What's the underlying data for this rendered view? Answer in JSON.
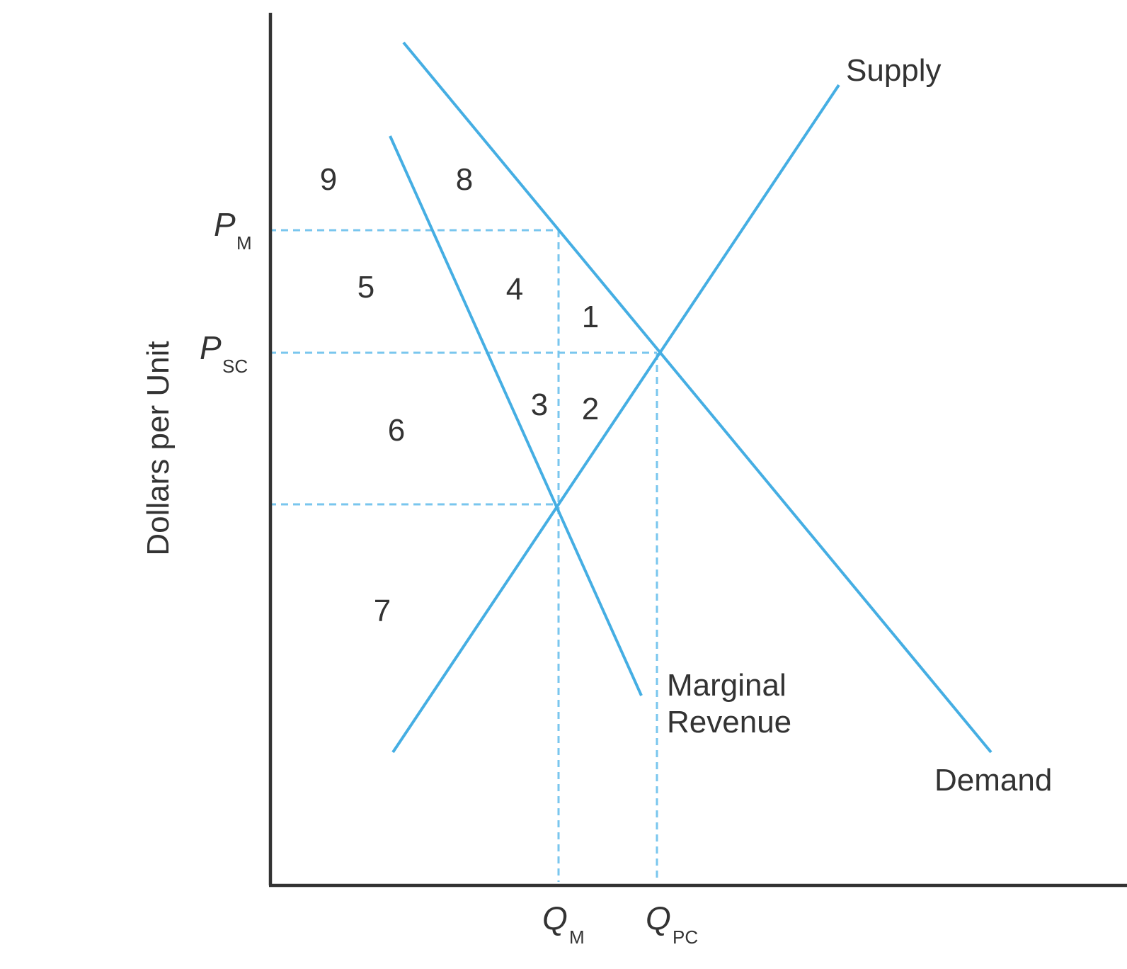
{
  "axes": {
    "y_label": "Dollars per Unit"
  },
  "curves": {
    "supply": "Supply",
    "demand": "Demand",
    "marginal_revenue_line1": "Marginal",
    "marginal_revenue_line2": "Revenue"
  },
  "price_markers": {
    "pm_symbol": "P",
    "pm_sub": "M",
    "psc_symbol": "P",
    "psc_sub": "SC"
  },
  "quantity_markers": {
    "qm_symbol": "Q",
    "qm_sub": "M",
    "qpc_symbol": "Q",
    "qpc_sub": "PC"
  },
  "areas": [
    "1",
    "2",
    "3",
    "4",
    "5",
    "6",
    "7",
    "8",
    "9"
  ],
  "colors": {
    "curve": "#45aee3",
    "guide": "#79c6ee",
    "axis": "#333333",
    "text": "#333333"
  }
}
